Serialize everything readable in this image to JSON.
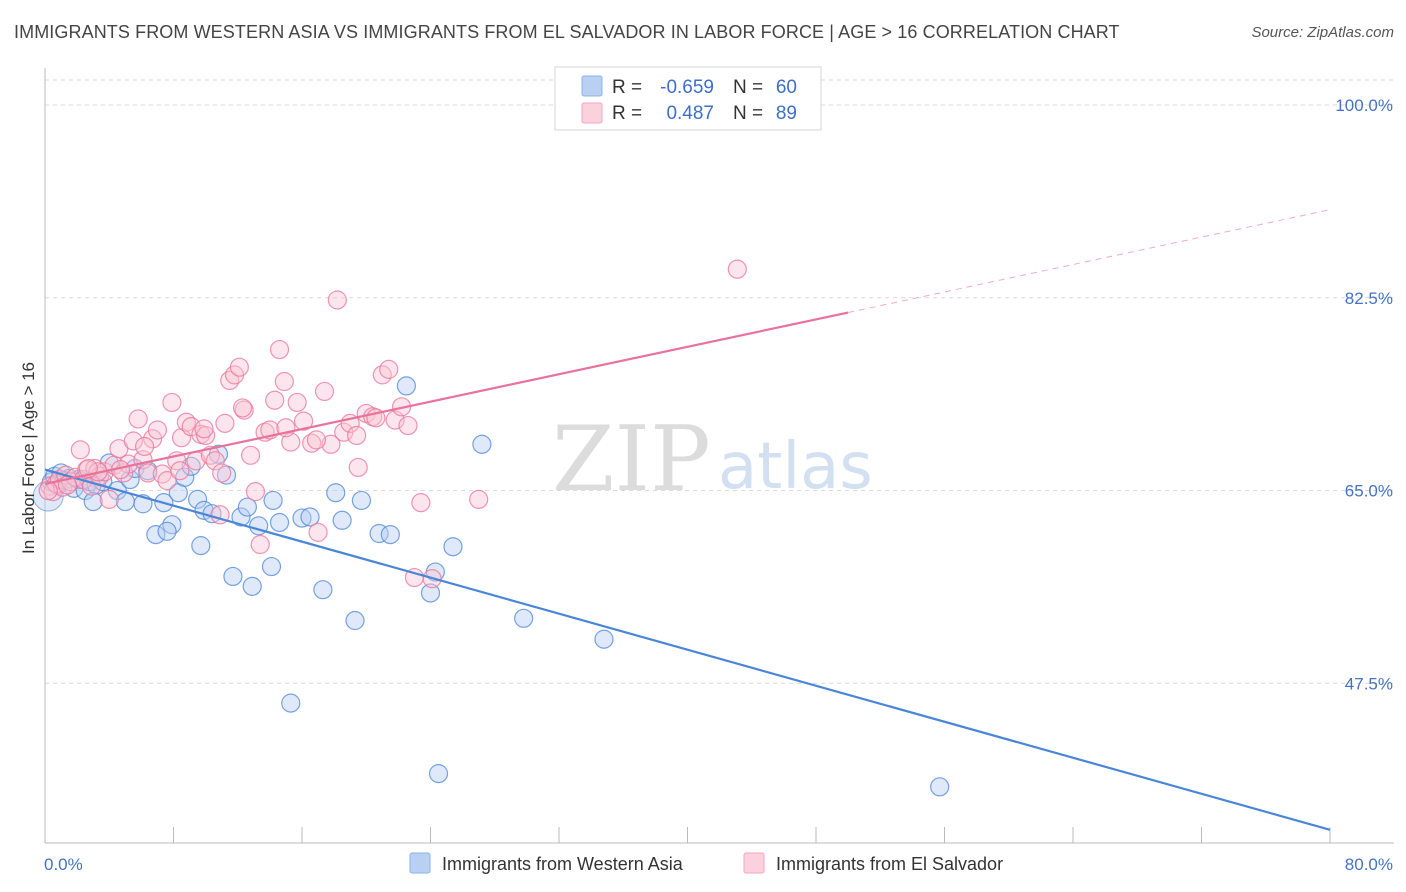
{
  "header": {
    "title": "IMMIGRANTS FROM WESTERN ASIA VS IMMIGRANTS FROM EL SALVADOR IN LABOR FORCE | AGE > 16 CORRELATION CHART",
    "source": "Source: ZipAtlas.com"
  },
  "watermark": {
    "zip": "ZIP",
    "atlas": "atlas"
  },
  "legend": {
    "rows": [
      {
        "r_label": "R =",
        "r_value": "-0.659",
        "n_label": "N =",
        "n_value": "60",
        "color": "#8ab4e8"
      },
      {
        "r_label": "R =",
        "r_value": "0.487",
        "n_label": "N =",
        "n_value": "89",
        "color": "#f4a6bf"
      }
    ]
  },
  "chart_data": {
    "type": "scatter",
    "title": "IMMIGRANTS FROM WESTERN ASIA VS IMMIGRANTS FROM EL SALVADOR IN LABOR FORCE | AGE > 16 CORRELATION CHART",
    "xlabel": "",
    "ylabel": "In Labor Force | Age > 16",
    "xlim": [
      0,
      80
    ],
    "ylim": [
      33,
      103
    ],
    "x_tick_labels": [
      "0.0%",
      "80.0%"
    ],
    "y_ticks": [
      47.5,
      65.0,
      82.5,
      100.0
    ],
    "y_tick_labels": [
      "47.5%",
      "65.0%",
      "82.5%",
      "100.0%"
    ],
    "grid": "horizontal dashed",
    "legend_position": "bottom",
    "series": [
      {
        "name": "Immigrants from Western Asia",
        "color": "#4a86d8",
        "fill": "#b7cff2",
        "trend": {
          "x0": 0,
          "y0": 66.9,
          "x1": 80,
          "y1": 34.2,
          "dashed_from": null
        },
        "points": [
          [
            0.4,
            65.8
          ],
          [
            0.6,
            66.3
          ],
          [
            0.8,
            65.5
          ],
          [
            1.0,
            66.6
          ],
          [
            1.2,
            65.9
          ],
          [
            1.5,
            66.1
          ],
          [
            1.8,
            65.2
          ],
          [
            2.1,
            66.0
          ],
          [
            2.5,
            65.0
          ],
          [
            2.8,
            65.8
          ],
          [
            3.2,
            65.5
          ],
          [
            3.6,
            65.8
          ],
          [
            4.0,
            67.5
          ],
          [
            4.5,
            65.0
          ],
          [
            5.0,
            64.0
          ],
          [
            5.3,
            66.0
          ],
          [
            5.6,
            67.0
          ],
          [
            6.1,
            63.8
          ],
          [
            6.4,
            66.8
          ],
          [
            6.9,
            61.0
          ],
          [
            7.4,
            63.9
          ],
          [
            7.9,
            61.9
          ],
          [
            8.3,
            64.8
          ],
          [
            8.7,
            66.2
          ],
          [
            9.1,
            67.2
          ],
          [
            9.5,
            64.2
          ],
          [
            9.9,
            63.2
          ],
          [
            10.4,
            62.9
          ],
          [
            10.8,
            68.3
          ],
          [
            11.3,
            66.4
          ],
          [
            11.7,
            57.2
          ],
          [
            12.2,
            62.6
          ],
          [
            12.9,
            56.3
          ],
          [
            13.3,
            61.8
          ],
          [
            14.1,
            58.1
          ],
          [
            14.6,
            62.1
          ],
          [
            15.3,
            45.7
          ],
          [
            16.0,
            62.5
          ],
          [
            16.5,
            62.6
          ],
          [
            17.3,
            56.0
          ],
          [
            18.1,
            64.8
          ],
          [
            18.5,
            62.3
          ],
          [
            19.3,
            53.2
          ],
          [
            19.7,
            64.1
          ],
          [
            20.8,
            61.1
          ],
          [
            21.5,
            61.0
          ],
          [
            22.5,
            74.5
          ],
          [
            24.0,
            55.7
          ],
          [
            24.3,
            57.6
          ],
          [
            24.5,
            39.3
          ],
          [
            25.4,
            59.9
          ],
          [
            27.2,
            69.2
          ],
          [
            29.8,
            53.4
          ],
          [
            34.8,
            51.5
          ],
          [
            55.7,
            38.1
          ],
          [
            14.2,
            64.1
          ],
          [
            12.6,
            63.5
          ],
          [
            9.7,
            60.0
          ],
          [
            3.0,
            64.0
          ],
          [
            7.6,
            61.3
          ]
        ]
      },
      {
        "name": "Immigrants from El Salvador",
        "color": "#e8739a",
        "fill": "#f8c5d5",
        "trend": {
          "x0": 0,
          "y0": 65.6,
          "x1": 80,
          "y1": 90.5,
          "dashed_from": 50
        },
        "points": [
          [
            0.3,
            65.4
          ],
          [
            0.5,
            64.9
          ],
          [
            0.7,
            65.6
          ],
          [
            0.9,
            66.0
          ],
          [
            1.1,
            65.3
          ],
          [
            1.3,
            66.4
          ],
          [
            1.6,
            65.8
          ],
          [
            1.9,
            66.2
          ],
          [
            2.2,
            68.7
          ],
          [
            2.4,
            66.0
          ],
          [
            2.6,
            66.9
          ],
          [
            2.9,
            65.4
          ],
          [
            3.1,
            67.0
          ],
          [
            3.4,
            66.3
          ],
          [
            3.7,
            66.7
          ],
          [
            4.0,
            64.2
          ],
          [
            4.3,
            67.3
          ],
          [
            4.6,
            68.8
          ],
          [
            4.9,
            66.6
          ],
          [
            5.2,
            67.4
          ],
          [
            5.5,
            69.5
          ],
          [
            5.8,
            71.5
          ],
          [
            6.1,
            67.8
          ],
          [
            6.4,
            66.6
          ],
          [
            6.7,
            69.7
          ],
          [
            7.0,
            70.5
          ],
          [
            7.3,
            66.5
          ],
          [
            7.6,
            65.9
          ],
          [
            7.9,
            73.0
          ],
          [
            8.2,
            67.7
          ],
          [
            8.5,
            69.8
          ],
          [
            8.8,
            71.2
          ],
          [
            9.1,
            70.8
          ],
          [
            9.4,
            67.7
          ],
          [
            9.7,
            70.1
          ],
          [
            10.0,
            70.0
          ],
          [
            10.3,
            68.2
          ],
          [
            10.6,
            67.7
          ],
          [
            10.9,
            62.8
          ],
          [
            11.2,
            71.1
          ],
          [
            11.5,
            75.0
          ],
          [
            11.8,
            75.5
          ],
          [
            12.1,
            76.2
          ],
          [
            12.4,
            72.3
          ],
          [
            12.8,
            68.2
          ],
          [
            13.1,
            64.9
          ],
          [
            13.4,
            60.1
          ],
          [
            13.7,
            70.3
          ],
          [
            14.0,
            70.5
          ],
          [
            14.3,
            73.2
          ],
          [
            14.6,
            77.8
          ],
          [
            14.9,
            74.9
          ],
          [
            15.3,
            69.4
          ],
          [
            15.7,
            73.0
          ],
          [
            16.1,
            71.3
          ],
          [
            16.6,
            69.3
          ],
          [
            17.0,
            61.2
          ],
          [
            17.4,
            74.0
          ],
          [
            17.8,
            69.2
          ],
          [
            18.2,
            82.3
          ],
          [
            18.6,
            70.3
          ],
          [
            19.0,
            71.1
          ],
          [
            19.5,
            67.1
          ],
          [
            20.0,
            72.0
          ],
          [
            20.4,
            71.7
          ],
          [
            21.0,
            75.5
          ],
          [
            21.4,
            76.0
          ],
          [
            21.8,
            71.4
          ],
          [
            22.2,
            72.6
          ],
          [
            22.6,
            70.9
          ],
          [
            23.0,
            57.1
          ],
          [
            23.4,
            63.9
          ],
          [
            24.1,
            57.0
          ],
          [
            27.0,
            64.2
          ],
          [
            43.1,
            85.1
          ],
          [
            19.4,
            70.0
          ],
          [
            15.0,
            70.7
          ],
          [
            11.0,
            66.6
          ],
          [
            8.4,
            66.8
          ],
          [
            6.2,
            69.0
          ],
          [
            3.3,
            66.7
          ],
          [
            2.7,
            67.0
          ],
          [
            1.4,
            65.5
          ],
          [
            0.2,
            65.0
          ],
          [
            4.7,
            66.9
          ],
          [
            9.9,
            70.6
          ],
          [
            12.3,
            72.5
          ],
          [
            16.9,
            69.6
          ],
          [
            20.6,
            71.6
          ]
        ]
      }
    ]
  },
  "bottom_legend": {
    "items": [
      {
        "label": "Immigrants from Western Asia",
        "color": "#8ab4e8"
      },
      {
        "label": "Immigrants from El Salvador",
        "color": "#f4a6bf"
      }
    ]
  }
}
